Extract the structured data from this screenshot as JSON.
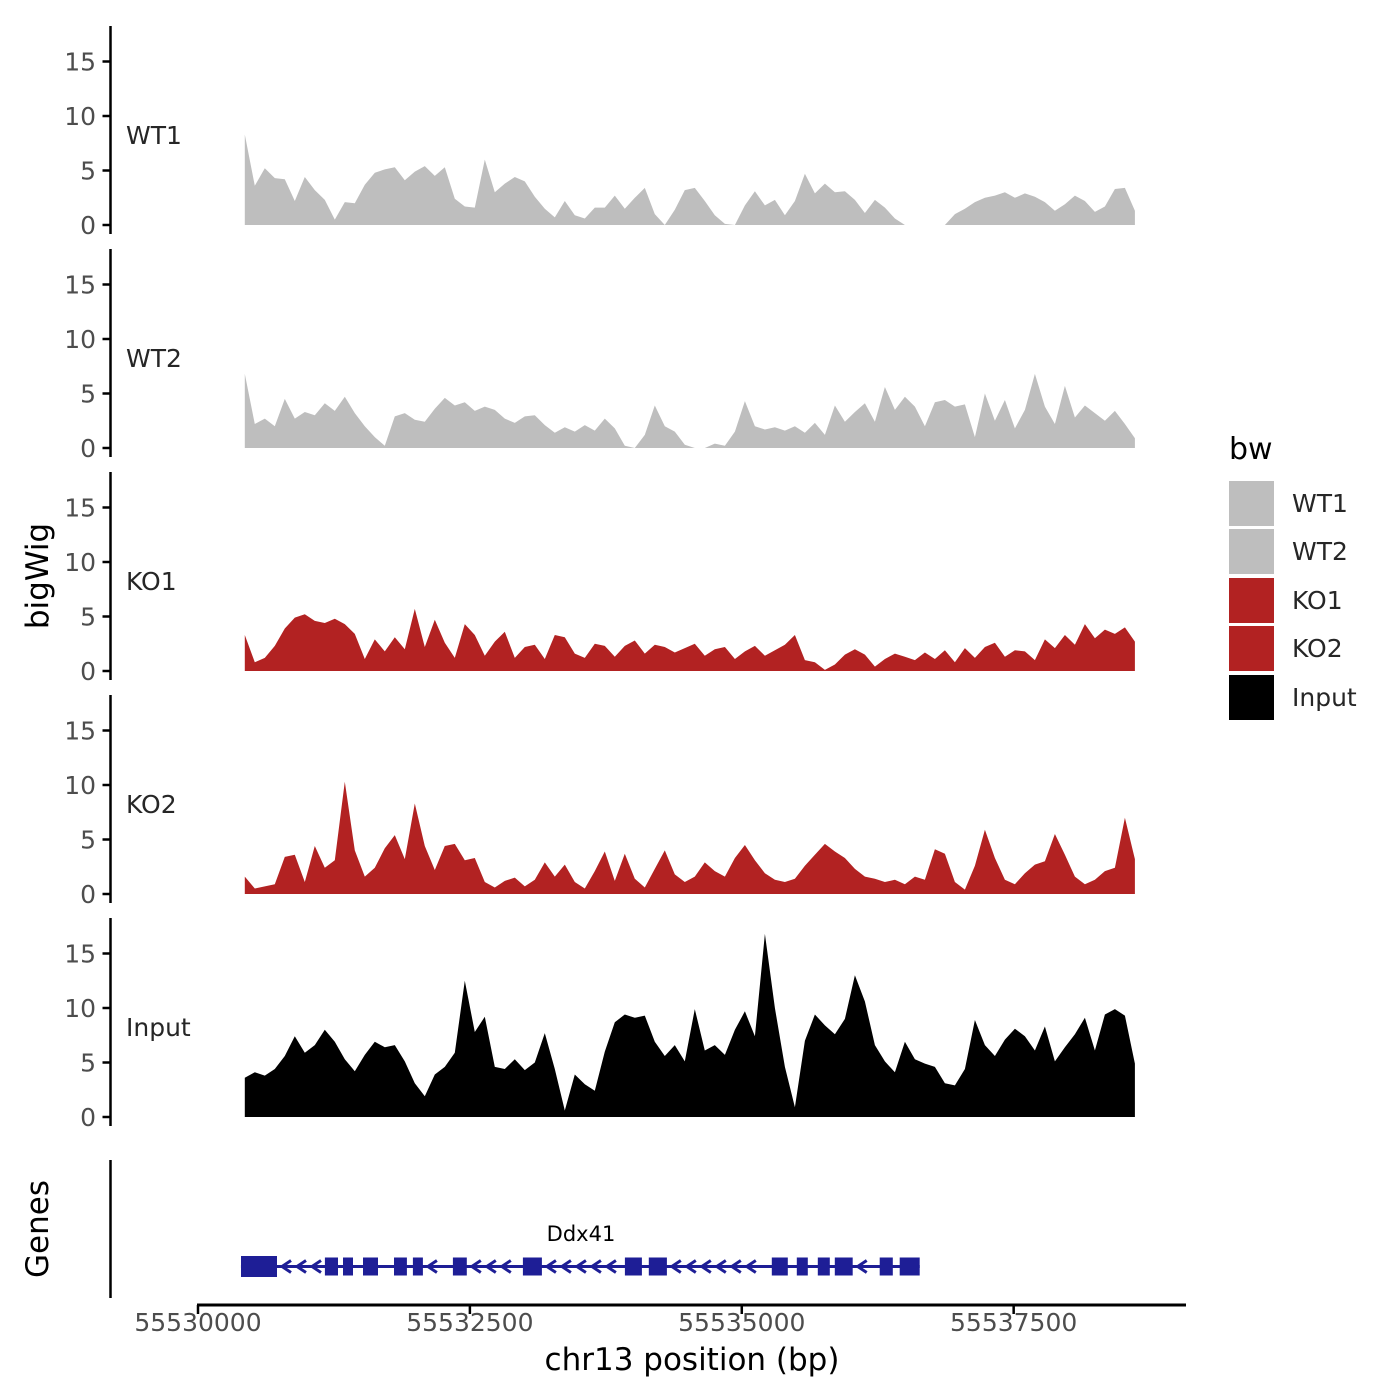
{
  "y_axis": {
    "label": "bigWig",
    "tick_labels": [
      "0",
      "5",
      "10",
      "15"
    ],
    "tick_values": [
      0,
      5,
      10,
      15
    ]
  },
  "genes_track": {
    "axis_label": "Genes"
  },
  "x_axis": {
    "label": "chr13 position (bp)",
    "tick_values": [
      55530000,
      55532500,
      55535000,
      55537500
    ],
    "tick_labels": [
      "55530000",
      "55532500",
      "55535000",
      "55537500"
    ]
  },
  "legend": {
    "title": "bw",
    "entries": [
      {
        "label": "WT1",
        "color": "#bebebe"
      },
      {
        "label": "WT2",
        "color": "#bebebe"
      },
      {
        "label": "KO1",
        "color": "#b22222"
      },
      {
        "label": "KO2",
        "color": "#b22222"
      },
      {
        "label": "Input",
        "color": "#000000"
      }
    ]
  },
  "gene_track": {
    "name": "Ddx41",
    "strand": "-",
    "color": "#1e1e96",
    "gene_start": 55530395,
    "gene_end": 55536636,
    "label_bp": 55533520,
    "exons": [
      [
        55530395,
        55530726
      ],
      [
        55531167,
        55531287
      ],
      [
        55531333,
        55531425
      ],
      [
        55531517,
        55531655
      ],
      [
        55531802,
        55531921
      ],
      [
        55531976,
        55532068
      ],
      [
        55532344,
        55532472
      ],
      [
        55532987,
        55533162
      ],
      [
        55533925,
        55534081
      ],
      [
        55534145,
        55534311
      ],
      [
        55535276,
        55535423
      ],
      [
        55535506,
        55535607
      ],
      [
        55535699,
        55535809
      ],
      [
        55535855,
        55536020
      ],
      [
        55536268,
        55536388
      ],
      [
        55536452,
        55536636
      ]
    ]
  },
  "chart_data": {
    "type": "area",
    "layout": "vertical-facets",
    "title": "",
    "xlabel": "chr13 position (bp)",
    "ylabel": "bigWig",
    "x_start": 55530430,
    "x_end": 55538615,
    "points_per_series": 90,
    "ylim": [
      0,
      18
    ],
    "y_ticks": [
      0,
      5,
      10,
      15
    ],
    "x_ticks": [
      55530000,
      55532500,
      55535000,
      55537500
    ],
    "grid": false,
    "legend_position": "right",
    "series": [
      {
        "name": "WT1",
        "color": "#bebebe",
        "values": [
          8.3,
          3.6,
          5.2,
          4.3,
          4.2,
          2.2,
          4.4,
          3.2,
          2.3,
          0.5,
          2.1,
          2.0,
          3.7,
          4.8,
          5.1,
          5.3,
          4.1,
          4.9,
          5.4,
          4.5,
          5.3,
          2.4,
          1.7,
          1.6,
          6.0,
          3.0,
          3.8,
          4.4,
          4.0,
          2.6,
          1.5,
          0.7,
          2.2,
          0.9,
          0.6,
          1.6,
          1.6,
          2.7,
          1.5,
          2.5,
          3.4,
          1.0,
          0.0,
          1.4,
          3.2,
          3.4,
          2.2,
          0.9,
          0.1,
          0.0,
          1.8,
          3.1,
          1.8,
          2.3,
          0.9,
          2.2,
          4.7,
          2.9,
          3.8,
          3.0,
          3.1,
          2.3,
          1.1,
          2.3,
          1.6,
          0.6,
          0.0,
          0.0,
          0.0,
          0.0,
          0.0,
          1.0,
          1.5,
          2.1,
          2.5,
          2.7,
          3.0,
          2.5,
          2.9,
          2.6,
          2.1,
          1.3,
          1.9,
          2.7,
          2.2,
          1.2,
          1.7,
          3.3,
          3.4,
          1.3
        ]
      },
      {
        "name": "WT2",
        "color": "#bebebe",
        "values": [
          6.8,
          2.2,
          2.7,
          2.0,
          4.5,
          2.7,
          3.3,
          3.0,
          4.1,
          3.4,
          4.7,
          3.2,
          2.0,
          1.0,
          0.2,
          2.9,
          3.2,
          2.6,
          2.4,
          3.6,
          4.6,
          3.9,
          4.2,
          3.4,
          3.8,
          3.5,
          2.7,
          2.3,
          2.9,
          3.0,
          2.1,
          1.4,
          1.9,
          1.5,
          2.1,
          1.6,
          2.7,
          1.8,
          0.2,
          0.0,
          1.2,
          3.9,
          2.0,
          1.5,
          0.3,
          0.0,
          0.0,
          0.4,
          0.2,
          1.5,
          4.3,
          2.0,
          1.7,
          1.9,
          1.6,
          2.0,
          1.4,
          2.3,
          1.2,
          3.9,
          2.4,
          3.3,
          4.1,
          2.4,
          5.6,
          3.5,
          4.7,
          3.8,
          2.0,
          4.2,
          4.4,
          3.8,
          4.0,
          1.0,
          5.0,
          2.5,
          4.4,
          1.8,
          3.5,
          6.8,
          3.8,
          2.2,
          5.7,
          2.8,
          3.9,
          3.2,
          2.5,
          3.4,
          2.2,
          0.9
        ]
      },
      {
        "name": "KO1",
        "color": "#b22222",
        "values": [
          3.3,
          0.8,
          1.2,
          2.3,
          3.9,
          4.9,
          5.2,
          4.6,
          4.4,
          4.8,
          4.3,
          3.4,
          1.1,
          2.9,
          1.8,
          3.1,
          2.0,
          5.7,
          2.2,
          4.7,
          2.6,
          1.2,
          4.3,
          3.3,
          1.4,
          2.7,
          3.6,
          1.2,
          2.2,
          2.4,
          1.1,
          3.3,
          3.1,
          1.6,
          1.2,
          2.5,
          2.3,
          1.3,
          2.3,
          2.8,
          1.6,
          2.4,
          2.2,
          1.7,
          2.1,
          2.5,
          1.4,
          2.0,
          2.2,
          1.1,
          1.8,
          2.3,
          1.4,
          1.9,
          2.4,
          3.3,
          1.0,
          0.8,
          0.1,
          0.6,
          1.5,
          2.0,
          1.5,
          0.4,
          1.1,
          1.6,
          1.3,
          1.0,
          1.7,
          1.1,
          1.9,
          0.8,
          2.1,
          1.2,
          2.2,
          2.6,
          1.3,
          1.9,
          1.8,
          1.0,
          2.9,
          2.1,
          3.3,
          2.4,
          4.3,
          3.0,
          3.8,
          3.4,
          4.0,
          2.7
        ]
      },
      {
        "name": "KO2",
        "color": "#b22222",
        "values": [
          1.6,
          0.5,
          0.7,
          0.9,
          3.4,
          3.6,
          1.1,
          4.4,
          2.4,
          3.1,
          10.3,
          4.0,
          1.6,
          2.4,
          4.2,
          5.4,
          3.2,
          8.3,
          4.4,
          2.2,
          4.4,
          4.6,
          3.1,
          3.3,
          1.1,
          0.6,
          1.2,
          1.5,
          0.7,
          1.3,
          2.9,
          1.6,
          2.7,
          1.1,
          0.5,
          2.1,
          3.9,
          1.2,
          3.7,
          1.4,
          0.6,
          2.3,
          4.0,
          1.8,
          1.1,
          1.6,
          2.9,
          2.1,
          1.6,
          3.3,
          4.5,
          3.1,
          1.9,
          1.3,
          1.1,
          1.4,
          2.6,
          3.6,
          4.6,
          3.9,
          3.3,
          2.3,
          1.6,
          1.4,
          1.1,
          1.3,
          0.9,
          1.6,
          1.3,
          4.1,
          3.7,
          1.1,
          0.4,
          2.6,
          5.9,
          3.3,
          1.3,
          0.9,
          1.9,
          2.7,
          3.0,
          5.5,
          3.6,
          1.6,
          0.9,
          1.3,
          2.1,
          2.4,
          7.0,
          3.2
        ]
      },
      {
        "name": "Input",
        "color": "#000000",
        "values": [
          3.6,
          4.1,
          3.8,
          4.4,
          5.6,
          7.4,
          5.9,
          6.6,
          8.0,
          6.9,
          5.3,
          4.2,
          5.7,
          6.9,
          6.4,
          6.6,
          5.1,
          3.1,
          1.9,
          3.9,
          4.6,
          5.9,
          12.5,
          7.8,
          9.2,
          4.6,
          4.4,
          5.3,
          4.3,
          5.0,
          7.7,
          4.4,
          0.6,
          3.9,
          3.0,
          2.4,
          6.0,
          8.7,
          9.4,
          9.1,
          9.3,
          6.9,
          5.6,
          6.6,
          5.1,
          9.9,
          6.1,
          6.6,
          5.7,
          8.0,
          9.7,
          7.4,
          16.8,
          10.0,
          4.6,
          0.9,
          7.0,
          9.4,
          8.4,
          7.6,
          9.0,
          13.0,
          10.6,
          6.6,
          5.1,
          4.1,
          6.9,
          5.3,
          4.9,
          4.6,
          3.1,
          2.9,
          4.4,
          8.9,
          6.6,
          5.6,
          7.1,
          8.1,
          7.4,
          6.1,
          8.3,
          5.1,
          6.4,
          7.6,
          9.1,
          6.1,
          9.4,
          9.9,
          9.3,
          4.9
        ]
      }
    ]
  }
}
